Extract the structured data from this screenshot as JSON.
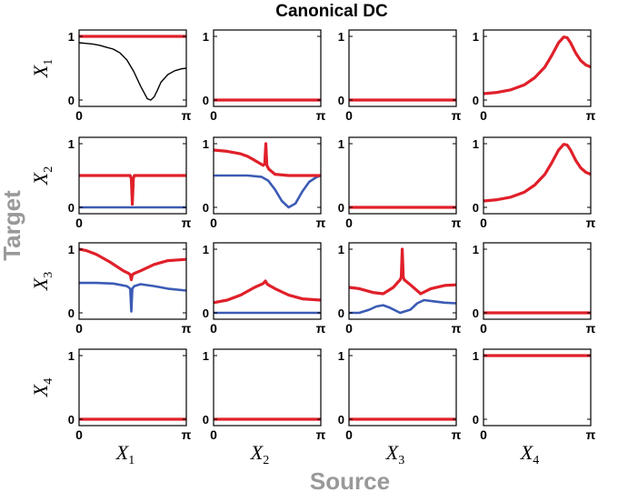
{
  "chart_data": {
    "type": "line",
    "title": "Canonical DC",
    "xlabel": "Source",
    "ylabel": "Target",
    "colors": {
      "red": "#e0202a",
      "blue": "#3b5bb5",
      "black": "#000000"
    },
    "row_labels": [
      {
        "var": "X",
        "sub": "1"
      },
      {
        "var": "X",
        "sub": "2"
      },
      {
        "var": "X",
        "sub": "3"
      },
      {
        "var": "X",
        "sub": "4"
      }
    ],
    "col_labels": [
      {
        "var": "X",
        "sub": "1"
      },
      {
        "var": "X",
        "sub": "2"
      },
      {
        "var": "X",
        "sub": "3"
      },
      {
        "var": "X",
        "sub": "4"
      }
    ],
    "x_ticks": [
      "0",
      "π"
    ],
    "y_ticks": [
      "0",
      "1"
    ],
    "xlim": [
      0,
      3.14159
    ],
    "ylim": [
      -0.1,
      1.1
    ],
    "panels": [
      [
        {
          "series": [
            {
              "color": "black",
              "x": [
                0,
                0.2,
                0.4,
                0.6,
                0.8,
                1.0,
                1.2,
                1.4,
                1.6,
                1.8,
                2.0,
                2.1,
                2.2,
                2.3,
                2.4,
                2.6,
                2.8,
                3.0,
                3.14
              ],
              "y": [
                0.9,
                0.89,
                0.88,
                0.86,
                0.83,
                0.8,
                0.74,
                0.63,
                0.45,
                0.22,
                0.02,
                0.0,
                0.05,
                0.16,
                0.28,
                0.4,
                0.46,
                0.49,
                0.5
              ]
            },
            {
              "color": "red",
              "x": [
                0,
                3.14
              ],
              "y": [
                1,
                1
              ]
            }
          ]
        },
        {
          "series": [
            {
              "color": "red",
              "x": [
                0,
                3.14
              ],
              "y": [
                0,
                0
              ]
            }
          ]
        },
        {
          "series": [
            {
              "color": "red",
              "x": [
                0,
                3.14
              ],
              "y": [
                0,
                0
              ]
            }
          ]
        },
        {
          "series": [
            {
              "color": "red",
              "x": [
                0,
                0.4,
                0.8,
                1.2,
                1.5,
                1.8,
                2.0,
                2.2,
                2.35,
                2.45,
                2.55,
                2.7,
                2.85,
                3.0,
                3.14
              ],
              "y": [
                0.1,
                0.12,
                0.16,
                0.24,
                0.35,
                0.52,
                0.7,
                0.9,
                0.99,
                0.98,
                0.9,
                0.74,
                0.62,
                0.55,
                0.52
              ]
            }
          ]
        }
      ],
      [
        {
          "series": [
            {
              "color": "blue",
              "x": [
                0,
                3.14
              ],
              "y": [
                0,
                0
              ]
            },
            {
              "color": "red",
              "x": [
                0,
                1.5,
                1.53,
                1.56,
                1.59,
                1.62,
                3.14
              ],
              "y": [
                0.5,
                0.5,
                0.45,
                0.05,
                0.45,
                0.5,
                0.5
              ]
            }
          ]
        },
        {
          "series": [
            {
              "color": "blue",
              "x": [
                0,
                0.5,
                1.0,
                1.4,
                1.6,
                1.8,
                2.0,
                2.2,
                2.4,
                2.6,
                2.8,
                3.0,
                3.14
              ],
              "y": [
                0.5,
                0.5,
                0.5,
                0.48,
                0.42,
                0.28,
                0.1,
                0.0,
                0.06,
                0.25,
                0.4,
                0.47,
                0.5
              ]
            },
            {
              "color": "red",
              "x": [
                0,
                0.4,
                0.8,
                1.0,
                1.2,
                1.45,
                1.5,
                1.53,
                1.56,
                1.62,
                1.8,
                2.2,
                2.6,
                3.14
              ],
              "y": [
                0.9,
                0.88,
                0.84,
                0.8,
                0.74,
                0.66,
                0.68,
                1.0,
                0.66,
                0.6,
                0.52,
                0.5,
                0.5,
                0.5
              ]
            }
          ]
        },
        {
          "series": [
            {
              "color": "red",
              "x": [
                0,
                3.14
              ],
              "y": [
                0,
                0
              ]
            }
          ]
        },
        {
          "series": [
            {
              "color": "red",
              "x": [
                0,
                0.4,
                0.8,
                1.2,
                1.5,
                1.8,
                2.0,
                2.2,
                2.35,
                2.45,
                2.55,
                2.7,
                2.85,
                3.0,
                3.14
              ],
              "y": [
                0.1,
                0.12,
                0.16,
                0.24,
                0.35,
                0.52,
                0.7,
                0.9,
                0.99,
                0.98,
                0.9,
                0.74,
                0.62,
                0.55,
                0.52
              ]
            }
          ]
        }
      ],
      [
        {
          "series": [
            {
              "color": "blue",
              "x": [
                0,
                0.5,
                1.0,
                1.4,
                1.5,
                1.53,
                1.56,
                1.62,
                1.8,
                2.2,
                2.6,
                3.14
              ],
              "y": [
                0.47,
                0.47,
                0.46,
                0.42,
                0.38,
                0.02,
                0.38,
                0.42,
                0.45,
                0.42,
                0.38,
                0.35
              ]
            },
            {
              "color": "red",
              "x": [
                0,
                0.2,
                0.5,
                0.9,
                1.3,
                1.45,
                1.5,
                1.53,
                1.56,
                1.62,
                1.8,
                2.2,
                2.6,
                3.14
              ],
              "y": [
                1.0,
                0.98,
                0.92,
                0.8,
                0.66,
                0.62,
                0.6,
                0.52,
                0.6,
                0.62,
                0.66,
                0.76,
                0.82,
                0.84
              ]
            }
          ]
        },
        {
          "series": [
            {
              "color": "blue",
              "x": [
                0,
                3.14
              ],
              "y": [
                0,
                0
              ]
            },
            {
              "color": "red",
              "x": [
                0,
                0.4,
                0.8,
                1.2,
                1.45,
                1.52,
                1.56,
                1.6,
                1.8,
                2.2,
                2.6,
                3.14
              ],
              "y": [
                0.16,
                0.2,
                0.28,
                0.4,
                0.46,
                0.5,
                0.46,
                0.44,
                0.38,
                0.28,
                0.22,
                0.2
              ]
            }
          ]
        },
        {
          "series": [
            {
              "color": "blue",
              "x": [
                0,
                0.3,
                0.6,
                0.8,
                1.0,
                1.2,
                1.5,
                1.8,
                2.0,
                2.2,
                2.5,
                2.8,
                3.14
              ],
              "y": [
                0.0,
                0.0,
                0.05,
                0.1,
                0.12,
                0.08,
                0.0,
                0.05,
                0.15,
                0.2,
                0.18,
                0.16,
                0.15
              ]
            },
            {
              "color": "red",
              "x": [
                0,
                0.3,
                0.7,
                1.0,
                1.3,
                1.5,
                1.53,
                1.56,
                1.59,
                1.62,
                1.8,
                2.1,
                2.4,
                2.8,
                3.14
              ],
              "y": [
                0.4,
                0.38,
                0.32,
                0.3,
                0.4,
                0.52,
                0.56,
                1.0,
                0.56,
                0.52,
                0.44,
                0.3,
                0.38,
                0.43,
                0.44
              ]
            }
          ]
        },
        {
          "series": [
            {
              "color": "red",
              "x": [
                0,
                3.14
              ],
              "y": [
                0,
                0
              ]
            }
          ]
        }
      ],
      [
        {
          "series": [
            {
              "color": "red",
              "x": [
                0,
                3.14
              ],
              "y": [
                0,
                0
              ]
            }
          ]
        },
        {
          "series": [
            {
              "color": "red",
              "x": [
                0,
                3.14
              ],
              "y": [
                0,
                0
              ]
            }
          ]
        },
        {
          "series": [
            {
              "color": "red",
              "x": [
                0,
                3.14
              ],
              "y": [
                0,
                0
              ]
            }
          ]
        },
        {
          "series": [
            {
              "color": "red",
              "x": [
                0,
                3.14
              ],
              "y": [
                1,
                1
              ]
            }
          ]
        }
      ]
    ]
  }
}
